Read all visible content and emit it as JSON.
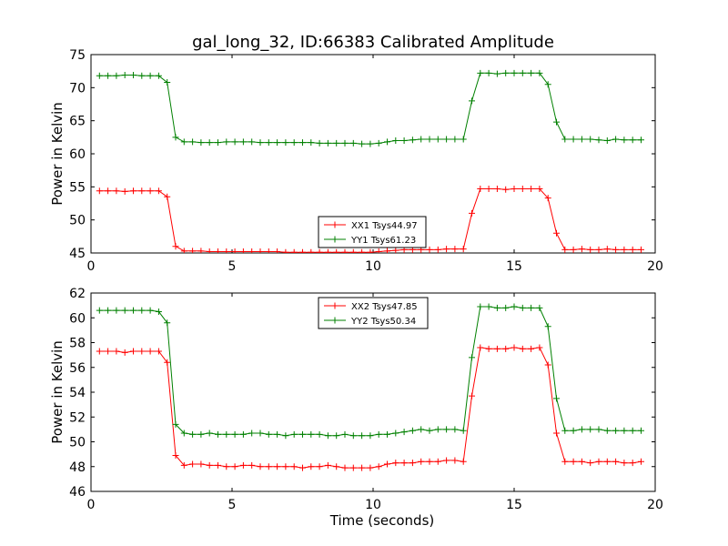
{
  "title": "gal_long_32, ID:66383 Calibrated Amplitude",
  "chart_data": [
    {
      "type": "line",
      "ylabel": "Power in Kelvin",
      "xlabel": "",
      "xlim": [
        0,
        20
      ],
      "ylim": [
        45,
        75
      ],
      "xticks": [
        0,
        5,
        10,
        15,
        20
      ],
      "yticks": [
        45,
        50,
        55,
        60,
        65,
        70,
        75
      ],
      "grid": false,
      "legend_position": "lower-center",
      "x": [
        0.3,
        0.6,
        0.9,
        1.2,
        1.5,
        1.8,
        2.1,
        2.4,
        2.7,
        3.0,
        3.3,
        3.6,
        3.9,
        4.2,
        4.5,
        4.8,
        5.1,
        5.4,
        5.7,
        6.0,
        6.3,
        6.6,
        6.9,
        7.2,
        7.5,
        7.8,
        8.1,
        8.4,
        8.7,
        9.0,
        9.3,
        9.6,
        9.9,
        10.2,
        10.5,
        10.8,
        11.1,
        11.4,
        11.7,
        12.0,
        12.3,
        12.6,
        12.9,
        13.2,
        13.5,
        13.8,
        14.1,
        14.4,
        14.7,
        15.0,
        15.3,
        15.6,
        15.9,
        16.2,
        16.5,
        16.8,
        17.1,
        17.4,
        17.7,
        18.0,
        18.3,
        18.6,
        18.9,
        19.2,
        19.5
      ],
      "series": [
        {
          "name": "XX1 Tsys44.97",
          "color": "#ff0000",
          "values": [
            54.4,
            54.4,
            54.4,
            54.3,
            54.4,
            54.4,
            54.4,
            54.4,
            53.5,
            46.0,
            45.3,
            45.3,
            45.3,
            45.2,
            45.2,
            45.2,
            45.2,
            45.2,
            45.2,
            45.2,
            45.2,
            45.2,
            45.1,
            45.1,
            45.1,
            45.1,
            45.1,
            45.1,
            45.1,
            45.1,
            45.1,
            45.1,
            45.1,
            45.2,
            45.3,
            45.4,
            45.5,
            45.5,
            45.5,
            45.5,
            45.5,
            45.6,
            45.6,
            45.6,
            51.0,
            54.7,
            54.7,
            54.7,
            54.6,
            54.7,
            54.7,
            54.7,
            54.7,
            53.3,
            48.0,
            45.5,
            45.5,
            45.6,
            45.5,
            45.5,
            45.6,
            45.5,
            45.5,
            45.5,
            45.5
          ]
        },
        {
          "name": "YY1 Tsys61.23",
          "color": "#008000",
          "values": [
            71.8,
            71.8,
            71.8,
            71.9,
            71.9,
            71.8,
            71.8,
            71.8,
            70.8,
            62.5,
            61.8,
            61.8,
            61.7,
            61.7,
            61.7,
            61.8,
            61.8,
            61.8,
            61.8,
            61.7,
            61.7,
            61.7,
            61.7,
            61.7,
            61.7,
            61.7,
            61.6,
            61.6,
            61.6,
            61.6,
            61.6,
            61.5,
            61.5,
            61.6,
            61.8,
            62.0,
            62.0,
            62.1,
            62.2,
            62.2,
            62.2,
            62.2,
            62.2,
            62.2,
            68.0,
            72.2,
            72.2,
            72.1,
            72.2,
            72.2,
            72.2,
            72.2,
            72.2,
            70.5,
            64.8,
            62.2,
            62.2,
            62.2,
            62.2,
            62.1,
            62.0,
            62.2,
            62.1,
            62.1,
            62.1
          ]
        }
      ]
    },
    {
      "type": "line",
      "ylabel": "Power in Kelvin",
      "xlabel": "Time (seconds)",
      "xlim": [
        0,
        20
      ],
      "ylim": [
        46,
        62
      ],
      "xticks": [
        0,
        5,
        10,
        15,
        20
      ],
      "yticks": [
        46,
        48,
        50,
        52,
        54,
        56,
        58,
        60,
        62
      ],
      "grid": false,
      "legend_position": "upper-center",
      "x": [
        0.3,
        0.6,
        0.9,
        1.2,
        1.5,
        1.8,
        2.1,
        2.4,
        2.7,
        3.0,
        3.3,
        3.6,
        3.9,
        4.2,
        4.5,
        4.8,
        5.1,
        5.4,
        5.7,
        6.0,
        6.3,
        6.6,
        6.9,
        7.2,
        7.5,
        7.8,
        8.1,
        8.4,
        8.7,
        9.0,
        9.3,
        9.6,
        9.9,
        10.2,
        10.5,
        10.8,
        11.1,
        11.4,
        11.7,
        12.0,
        12.3,
        12.6,
        12.9,
        13.2,
        13.5,
        13.8,
        14.1,
        14.4,
        14.7,
        15.0,
        15.3,
        15.6,
        15.9,
        16.2,
        16.5,
        16.8,
        17.1,
        17.4,
        17.7,
        18.0,
        18.3,
        18.6,
        18.9,
        19.2,
        19.5
      ],
      "series": [
        {
          "name": "XX2 Tsys47.85",
          "color": "#ff0000",
          "values": [
            57.3,
            57.3,
            57.3,
            57.2,
            57.3,
            57.3,
            57.3,
            57.3,
            56.4,
            48.9,
            48.1,
            48.2,
            48.2,
            48.1,
            48.1,
            48.0,
            48.0,
            48.1,
            48.1,
            48.0,
            48.0,
            48.0,
            48.0,
            48.0,
            47.9,
            48.0,
            48.0,
            48.1,
            48.0,
            47.9,
            47.9,
            47.9,
            47.9,
            48.0,
            48.2,
            48.3,
            48.3,
            48.3,
            48.4,
            48.4,
            48.4,
            48.5,
            48.5,
            48.4,
            53.7,
            57.6,
            57.5,
            57.5,
            57.5,
            57.6,
            57.5,
            57.5,
            57.6,
            56.2,
            50.7,
            48.4,
            48.4,
            48.4,
            48.3,
            48.4,
            48.4,
            48.4,
            48.3,
            48.3,
            48.4
          ]
        },
        {
          "name": "YY2 Tsys50.34",
          "color": "#008000",
          "values": [
            60.6,
            60.6,
            60.6,
            60.6,
            60.6,
            60.6,
            60.6,
            60.5,
            59.6,
            51.4,
            50.7,
            50.6,
            50.6,
            50.7,
            50.6,
            50.6,
            50.6,
            50.6,
            50.7,
            50.7,
            50.6,
            50.6,
            50.5,
            50.6,
            50.6,
            50.6,
            50.6,
            50.5,
            50.5,
            50.6,
            50.5,
            50.5,
            50.5,
            50.6,
            50.6,
            50.7,
            50.8,
            50.9,
            51.0,
            50.9,
            51.0,
            51.0,
            51.0,
            50.9,
            56.8,
            60.9,
            60.9,
            60.8,
            60.8,
            60.9,
            60.8,
            60.8,
            60.8,
            59.3,
            53.5,
            50.9,
            50.9,
            51.0,
            51.0,
            51.0,
            50.9,
            50.9,
            50.9,
            50.9,
            50.9
          ]
        }
      ]
    }
  ]
}
